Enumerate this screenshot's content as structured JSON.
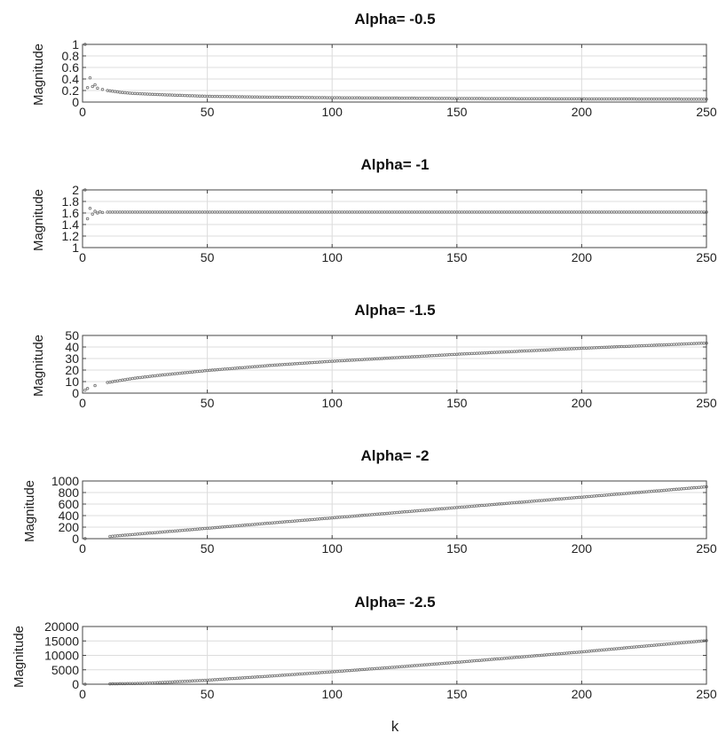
{
  "xlabel_shared": "k",
  "colors": {
    "marker": "#7a7a7a",
    "grid": "#dcdcdc",
    "axis": "#444444"
  },
  "chart_data": [
    {
      "type": "scatter",
      "title": "Alpha= -0.5",
      "ylabel": "Magnitude",
      "xlim": [
        0,
        250
      ],
      "ylim": [
        0,
        1
      ],
      "xticks": [
        0,
        50,
        100,
        150,
        200,
        250
      ],
      "yticks": [
        0,
        0.2,
        0.4,
        0.6,
        0.8,
        1
      ],
      "ytick_labels": [
        "0",
        "0.2",
        "0.4",
        "0.6",
        "0.8",
        "1"
      ],
      "grid": true,
      "series": [
        {
          "x": [
            1,
            2,
            3,
            4,
            5,
            6,
            8,
            10,
            15,
            20,
            30,
            50,
            75,
            100,
            150,
            200,
            250
          ],
          "y": [
            1.0,
            0.25,
            0.42,
            0.27,
            0.3,
            0.24,
            0.22,
            0.2,
            0.17,
            0.15,
            0.13,
            0.1,
            0.085,
            0.075,
            0.062,
            0.055,
            0.05
          ]
        }
      ]
    },
    {
      "type": "scatter",
      "title": "Alpha= -1",
      "ylabel": "Magnitude",
      "xlim": [
        0,
        250
      ],
      "ylim": [
        1,
        2
      ],
      "xticks": [
        0,
        50,
        100,
        150,
        200,
        250
      ],
      "yticks": [
        1,
        1.2,
        1.4,
        1.6,
        1.8,
        2
      ],
      "ytick_labels": [
        "1",
        "1.2",
        "1.4",
        "1.6",
        "1.8",
        "2"
      ],
      "grid": true,
      "series": [
        {
          "x": [
            1,
            2,
            3,
            4,
            5,
            6,
            7,
            8,
            10,
            20,
            50,
            100,
            150,
            200,
            250
          ],
          "y": [
            2.0,
            1.5,
            1.68,
            1.58,
            1.63,
            1.6,
            1.62,
            1.61,
            1.615,
            1.615,
            1.615,
            1.615,
            1.615,
            1.615,
            1.615
          ]
        }
      ]
    },
    {
      "type": "scatter",
      "title": "Alpha= -1.5",
      "ylabel": "Magnitude",
      "xlim": [
        0,
        250
      ],
      "ylim": [
        0,
        50
      ],
      "xticks": [
        0,
        50,
        100,
        150,
        200,
        250
      ],
      "yticks": [
        0,
        10,
        20,
        30,
        40,
        50
      ],
      "ytick_labels": [
        "0",
        "10",
        "20",
        "30",
        "40",
        "50"
      ],
      "grid": true,
      "series": [
        {
          "x": [
            1,
            2,
            5,
            10,
            20,
            30,
            50,
            75,
            100,
            150,
            200,
            250
          ],
          "y": [
            2.6,
            4.0,
            6.5,
            9.2,
            12.7,
            15.3,
            19.6,
            24.0,
            27.6,
            33.7,
            38.9,
            43.4
          ]
        }
      ]
    },
    {
      "type": "scatter",
      "title": "Alpha= -2",
      "ylabel": "Magnitude",
      "xlim": [
        0,
        250
      ],
      "ylim": [
        0,
        1000
      ],
      "xticks": [
        0,
        50,
        100,
        150,
        200,
        250
      ],
      "yticks": [
        0,
        200,
        400,
        600,
        800,
        1000
      ],
      "ytick_labels": [
        "0",
        "200",
        "400",
        "600",
        "800",
        "1000"
      ],
      "grid": true,
      "series": [
        {
          "x": [
            1,
            25,
            50,
            75,
            100,
            125,
            150,
            175,
            200,
            225,
            250
          ],
          "y": [
            2,
            90,
            180,
            270,
            360,
            450,
            540,
            630,
            720,
            810,
            900
          ]
        }
      ]
    },
    {
      "type": "scatter",
      "title": "Alpha= -2.5",
      "ylabel": "Magnitude",
      "xlim": [
        0,
        250
      ],
      "ylim": [
        0,
        20000
      ],
      "xticks": [
        0,
        50,
        100,
        150,
        200,
        250
      ],
      "yticks": [
        0,
        5000,
        10000,
        15000,
        20000
      ],
      "ytick_labels": [
        "0",
        "5000",
        "10000",
        "15000",
        "20000"
      ],
      "grid": true,
      "series": [
        {
          "x": [
            1,
            25,
            50,
            75,
            100,
            125,
            150,
            175,
            200,
            225,
            250
          ],
          "y": [
            3,
            300,
            1400,
            2800,
            4300,
            5900,
            7600,
            9400,
            11200,
            13200,
            15100
          ]
        }
      ]
    }
  ]
}
